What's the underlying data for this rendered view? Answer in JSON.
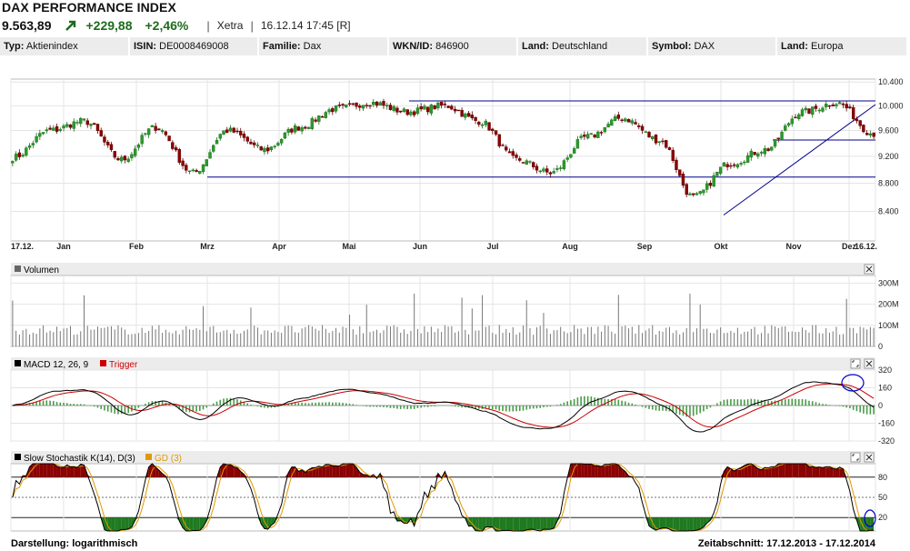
{
  "header": {
    "title": "DAX PERFORMANCE INDEX",
    "price": "9.563,89",
    "change": "+229,88",
    "change_pct": "+2,46%",
    "exchange": "Xetra",
    "datetime": "16.12.14 17:45 [R]",
    "up_color": "#1d6b1d"
  },
  "info": [
    {
      "label": "Typ:",
      "value": "Aktienindex"
    },
    {
      "label": "ISIN:",
      "value": "DE0008469008"
    },
    {
      "label": "Familie:",
      "value": "Dax"
    },
    {
      "label": "WKN/ID:",
      "value": "846900"
    },
    {
      "label": "Land:",
      "value": "Deutschland"
    },
    {
      "label": "Symbol:",
      "value": "DAX"
    },
    {
      "label": "Land:",
      "value": "Europa"
    }
  ],
  "footer": {
    "left_label": "Darstellung:",
    "left_value": "logarithmisch",
    "right_label": "Zeitabschnitt:",
    "right_value": "17.12.2013 - 17.12.2014"
  },
  "chart_data": [
    {
      "type": "candlestick",
      "scale": "log",
      "x_labels": [
        "17.12.",
        "Jan",
        "Feb",
        "Mrz",
        "Apr",
        "Mai",
        "Jun",
        "Jul",
        "Aug",
        "Sep",
        "Okt",
        "Nov",
        "Dez",
        "16.12."
      ],
      "y_ticks": [
        8400,
        8800,
        9200,
        9600,
        10000,
        10400
      ],
      "y_tick_labels": [
        "8.400",
        "8.800",
        "9.200",
        "9.600",
        "10.000",
        "10.400"
      ],
      "ylim": [
        8000,
        10450
      ],
      "key_points": [
        {
          "date": "17.12.",
          "close": 9180
        },
        {
          "date": "Jan",
          "close": 9600
        },
        {
          "date": "Jan",
          "close": 9750
        },
        {
          "date": "Feb",
          "close": 9150
        },
        {
          "date": "Feb",
          "close": 9650
        },
        {
          "date": "Mrz",
          "close": 8950
        },
        {
          "date": "Apr",
          "close": 9600
        },
        {
          "date": "Apr",
          "close": 9300
        },
        {
          "date": "Mai",
          "close": 9650
        },
        {
          "date": "Mai",
          "close": 9950
        },
        {
          "date": "Jun",
          "close": 10050
        },
        {
          "date": "Jun",
          "close": 9900
        },
        {
          "date": "Jul",
          "close": 10000
        },
        {
          "date": "Jul",
          "close": 9750
        },
        {
          "date": "Aug",
          "close": 9150
        },
        {
          "date": "Aug",
          "close": 8950
        },
        {
          "date": "Aug",
          "close": 9500
        },
        {
          "date": "Sep",
          "close": 9800
        },
        {
          "date": "Sep",
          "close": 9450
        },
        {
          "date": "Okt",
          "close": 8600
        },
        {
          "date": "Okt",
          "close": 9100
        },
        {
          "date": "Nov",
          "close": 9300
        },
        {
          "date": "Nov",
          "close": 9900
        },
        {
          "date": "Dez",
          "close": 10050
        },
        {
          "date": "16.12.",
          "close": 9550
        }
      ],
      "colors": {
        "up": "#2a9a2a",
        "down": "#8b0000",
        "line": "#00008b"
      }
    },
    {
      "type": "bar",
      "title": "Volumen",
      "y_tick_labels": [
        "0",
        "100M",
        "200M",
        "300M"
      ],
      "ylim": [
        0,
        300
      ],
      "typical_volume_m": 85,
      "peak_volume_m": 250
    },
    {
      "type": "line",
      "title": "MACD 12, 26, 9",
      "trigger_label": "Trigger",
      "y_ticks": [
        -320,
        -160,
        0,
        160,
        320
      ],
      "y_tick_labels": [
        "-320",
        "-160",
        "0",
        "160",
        "320"
      ],
      "ylim": [
        -320,
        320
      ],
      "series": [
        {
          "name": "MACD 12, 26, 9",
          "color": "#000000"
        },
        {
          "name": "Trigger",
          "color": "#cc0000"
        }
      ]
    },
    {
      "type": "line",
      "title": "Slow Stochastik K(14), D(3)",
      "gd_label": "GD (3)",
      "y_ticks": [
        20,
        50,
        80
      ],
      "y_tick_labels": [
        "20",
        "50",
        "80"
      ],
      "ylim": [
        0,
        100
      ],
      "series": [
        {
          "name": "Slow Stochastik K(14), D(3)",
          "color": "#000000"
        },
        {
          "name": "GD (3)",
          "color": "#e09a00"
        }
      ]
    }
  ]
}
